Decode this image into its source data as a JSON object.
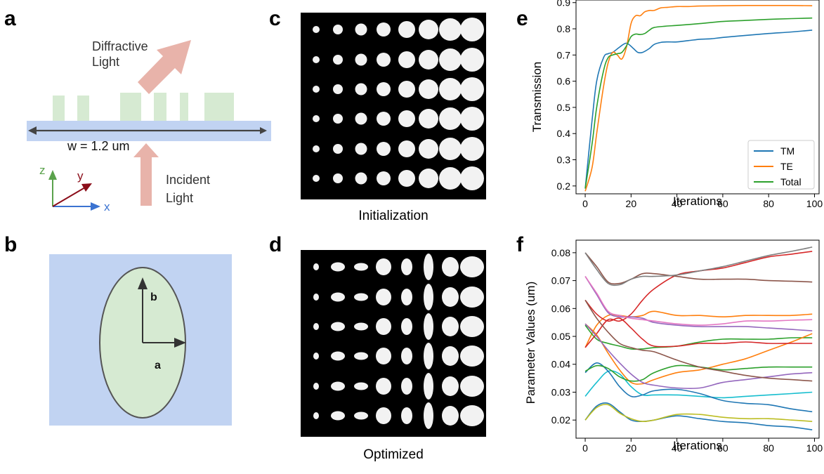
{
  "panels": {
    "a": "a",
    "b": "b",
    "c": "c",
    "d": "d",
    "e": "e",
    "f": "f"
  },
  "panel_a": {
    "diffractive_label_1": "Diffractive",
    "diffractive_label_2": "Light",
    "incident_label_1": "Incident",
    "incident_label_2": "Light",
    "width_label": "w = 1.2 um",
    "axis_z": "z",
    "axis_y": "y",
    "axis_x": "x",
    "colors": {
      "substrate": "#c1d3f2",
      "pillar": "#d6ead2",
      "arrow": "#e8b3aa",
      "z_axis": "#5aa24c",
      "y_axis": "#8b0e1a",
      "x_axis": "#3b73d1"
    }
  },
  "panel_b": {
    "label_a": "a",
    "label_b": "b",
    "colors": {
      "background": "#c1d3f2",
      "ellipse": "#d6ead2"
    }
  },
  "panel_c": {
    "caption": "Initialization"
  },
  "panel_d": {
    "caption": "Optimized"
  },
  "panel_e": {
    "chart_data": {
      "type": "line",
      "xlabel": "Iterations",
      "ylabel": "Transmission",
      "xlim": [
        -4,
        102
      ],
      "ylim": [
        0.17,
        0.91
      ],
      "xticks": [
        0,
        20,
        40,
        60,
        80,
        100
      ],
      "yticks": [
        0.2,
        0.3,
        0.4,
        0.5,
        0.6,
        0.7,
        0.8,
        0.9
      ],
      "legend": "bottom-right",
      "series": [
        {
          "name": "TM",
          "color": "#1f77b4",
          "x": [
            0,
            3,
            5,
            8,
            10,
            12,
            15,
            18,
            21,
            23,
            25,
            28,
            30,
            33,
            36,
            40,
            45,
            50,
            55,
            60,
            70,
            80,
            90,
            99
          ],
          "y": [
            0.19,
            0.45,
            0.6,
            0.69,
            0.705,
            0.71,
            0.73,
            0.745,
            0.725,
            0.71,
            0.71,
            0.725,
            0.74,
            0.748,
            0.75,
            0.75,
            0.755,
            0.76,
            0.762,
            0.767,
            0.775,
            0.782,
            0.788,
            0.795
          ]
        },
        {
          "name": "TE",
          "color": "#ff7f0e",
          "x": [
            0,
            3,
            5,
            8,
            10,
            12,
            14,
            16,
            18,
            20,
            22,
            24,
            26,
            28,
            30,
            33,
            36,
            40,
            45,
            50,
            60,
            70,
            80,
            90,
            99
          ],
          "y": [
            0.18,
            0.27,
            0.4,
            0.58,
            0.67,
            0.71,
            0.7,
            0.685,
            0.73,
            0.82,
            0.85,
            0.85,
            0.865,
            0.87,
            0.87,
            0.88,
            0.882,
            0.885,
            0.885,
            0.887,
            0.888,
            0.889,
            0.889,
            0.889,
            0.888
          ]
        },
        {
          "name": "Total",
          "color": "#2ca02c",
          "x": [
            0,
            3,
            5,
            8,
            10,
            12,
            14,
            16,
            18,
            20,
            22,
            24,
            26,
            28,
            30,
            35,
            40,
            50,
            60,
            70,
            80,
            90,
            99
          ],
          "y": [
            0.19,
            0.36,
            0.5,
            0.64,
            0.69,
            0.7,
            0.705,
            0.71,
            0.735,
            0.77,
            0.78,
            0.778,
            0.782,
            0.795,
            0.805,
            0.81,
            0.813,
            0.82,
            0.828,
            0.832,
            0.836,
            0.839,
            0.841
          ]
        }
      ]
    }
  },
  "panel_f": {
    "chart_data": {
      "type": "line",
      "xlabel": "Iterations",
      "ylabel": "Parameter Values (um)",
      "xlim": [
        -4,
        102
      ],
      "ylim": [
        0.0135,
        0.0845
      ],
      "xticks": [
        0,
        20,
        40,
        60,
        80,
        100
      ],
      "yticks": [
        0.02,
        0.03,
        0.04,
        0.05,
        0.06,
        0.07,
        0.08
      ],
      "series": [
        {
          "color": "#1f77b4",
          "x": [
            0,
            5,
            10,
            15,
            20,
            25,
            30,
            40,
            50,
            60,
            70,
            80,
            90,
            99
          ],
          "y": [
            0.02,
            0.025,
            0.026,
            0.023,
            0.02,
            0.0195,
            0.02,
            0.0215,
            0.0205,
            0.0195,
            0.019,
            0.018,
            0.0175,
            0.0165
          ]
        },
        {
          "color": "#ff7f0e",
          "x": [
            0,
            5,
            10,
            15,
            20,
            25,
            30,
            40,
            50,
            60,
            70,
            80,
            90,
            99
          ],
          "y": [
            0.046,
            0.054,
            0.0575,
            0.0575,
            0.057,
            0.0575,
            0.059,
            0.0575,
            0.0575,
            0.057,
            0.0575,
            0.0575,
            0.0575,
            0.058
          ]
        },
        {
          "color": "#2ca02c",
          "x": [
            0,
            5,
            10,
            15,
            20,
            25,
            30,
            40,
            50,
            60,
            70,
            80,
            90,
            99
          ],
          "y": [
            0.054,
            0.049,
            0.0475,
            0.0465,
            0.0455,
            0.0455,
            0.046,
            0.0465,
            0.048,
            0.049,
            0.049,
            0.049,
            0.0495,
            0.0495
          ]
        },
        {
          "color": "#d62728",
          "x": [
            0,
            5,
            10,
            15,
            20,
            25,
            30,
            40,
            50,
            60,
            70,
            80,
            90,
            99
          ],
          "y": [
            0.046,
            0.051,
            0.056,
            0.0555,
            0.058,
            0.063,
            0.067,
            0.072,
            0.0735,
            0.0745,
            0.0765,
            0.0785,
            0.0795,
            0.0805
          ]
        },
        {
          "color": "#9467bd",
          "x": [
            0,
            5,
            10,
            15,
            20,
            25,
            30,
            40,
            50,
            60,
            70,
            80,
            90,
            99
          ],
          "y": [
            0.0715,
            0.065,
            0.0585,
            0.057,
            0.057,
            0.0565,
            0.055,
            0.054,
            0.0535,
            0.0535,
            0.0535,
            0.053,
            0.0525,
            0.052
          ]
        },
        {
          "color": "#8c564b",
          "x": [
            0,
            5,
            10,
            15,
            20,
            25,
            30,
            40,
            50,
            60,
            70,
            80,
            90,
            99
          ],
          "y": [
            0.08,
            0.075,
            0.0695,
            0.069,
            0.0705,
            0.0725,
            0.0725,
            0.0715,
            0.0705,
            0.0705,
            0.0705,
            0.07,
            0.0698,
            0.0695
          ]
        },
        {
          "color": "#e377c2",
          "x": [
            0,
            5,
            10,
            15,
            20,
            25,
            30,
            40,
            50,
            60,
            70,
            80,
            90,
            99
          ],
          "y": [
            0.0715,
            0.0655,
            0.059,
            0.0575,
            0.0565,
            0.056,
            0.0555,
            0.0545,
            0.054,
            0.0545,
            0.0555,
            0.0555,
            0.0558,
            0.056
          ]
        },
        {
          "color": "#7f7f7f",
          "x": [
            0,
            5,
            10,
            15,
            20,
            25,
            30,
            40,
            50,
            60,
            70,
            80,
            90,
            99
          ],
          "y": [
            0.08,
            0.074,
            0.069,
            0.0685,
            0.0705,
            0.0715,
            0.0715,
            0.072,
            0.0735,
            0.075,
            0.077,
            0.079,
            0.0805,
            0.082
          ]
        },
        {
          "color": "#bcbd22",
          "x": [
            0,
            5,
            10,
            15,
            20,
            25,
            30,
            40,
            50,
            60,
            70,
            80,
            90,
            99
          ],
          "y": [
            0.02,
            0.0245,
            0.0255,
            0.0225,
            0.0205,
            0.0195,
            0.02,
            0.022,
            0.022,
            0.021,
            0.0205,
            0.0205,
            0.02,
            0.0195
          ]
        },
        {
          "color": "#17becf",
          "x": [
            0,
            5,
            10,
            15,
            20,
            25,
            30,
            40,
            50,
            60,
            70,
            80,
            90,
            99
          ],
          "y": [
            0.0285,
            0.0335,
            0.0375,
            0.0365,
            0.032,
            0.029,
            0.029,
            0.029,
            0.0285,
            0.028,
            0.0285,
            0.029,
            0.0295,
            0.03
          ]
        },
        {
          "color": "#1f77b4",
          "x": [
            0,
            5,
            10,
            15,
            20,
            25,
            30,
            40,
            50,
            60,
            70,
            80,
            90,
            99
          ],
          "y": [
            0.037,
            0.0405,
            0.0375,
            0.032,
            0.0285,
            0.029,
            0.0305,
            0.031,
            0.0295,
            0.027,
            0.026,
            0.0255,
            0.024,
            0.023
          ]
        },
        {
          "color": "#ff7f0e",
          "x": [
            0,
            5,
            10,
            15,
            20,
            25,
            30,
            40,
            50,
            60,
            70,
            80,
            90,
            99
          ],
          "y": [
            0.0545,
            0.0505,
            0.044,
            0.038,
            0.0335,
            0.033,
            0.0345,
            0.037,
            0.038,
            0.04,
            0.042,
            0.045,
            0.048,
            0.051
          ]
        },
        {
          "color": "#2ca02c",
          "x": [
            0,
            5,
            10,
            15,
            20,
            25,
            30,
            40,
            50,
            60,
            70,
            80,
            90,
            99
          ],
          "y": [
            0.0375,
            0.0395,
            0.0385,
            0.0355,
            0.034,
            0.0345,
            0.037,
            0.0395,
            0.039,
            0.038,
            0.0385,
            0.039,
            0.039,
            0.039
          ]
        },
        {
          "color": "#d62728",
          "x": [
            0,
            5,
            10,
            15,
            20,
            25,
            30,
            40,
            50,
            60,
            70,
            80,
            90,
            99
          ],
          "y": [
            0.063,
            0.058,
            0.0555,
            0.0565,
            0.053,
            0.049,
            0.0465,
            0.0465,
            0.0475,
            0.0475,
            0.048,
            0.0475,
            0.0475,
            0.0475
          ]
        },
        {
          "color": "#9467bd",
          "x": [
            0,
            5,
            10,
            15,
            20,
            25,
            30,
            40,
            50,
            60,
            70,
            80,
            90,
            99
          ],
          "y": [
            0.0545,
            0.05,
            0.045,
            0.0405,
            0.0365,
            0.0335,
            0.0325,
            0.0315,
            0.0315,
            0.0335,
            0.0345,
            0.0355,
            0.0365,
            0.037
          ]
        },
        {
          "color": "#8c564b",
          "x": [
            0,
            5,
            10,
            15,
            20,
            25,
            30,
            40,
            50,
            60,
            70,
            80,
            90,
            99
          ],
          "y": [
            0.063,
            0.0565,
            0.0515,
            0.0475,
            0.046,
            0.045,
            0.0445,
            0.0415,
            0.039,
            0.0375,
            0.036,
            0.035,
            0.0345,
            0.034
          ]
        }
      ]
    }
  }
}
